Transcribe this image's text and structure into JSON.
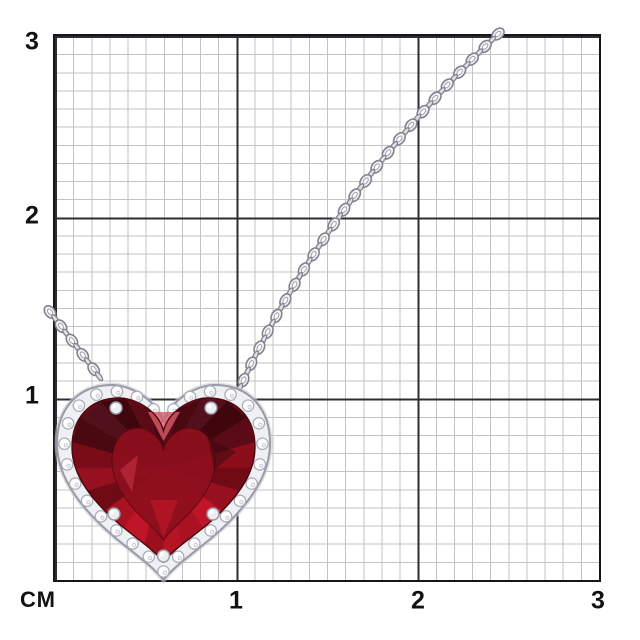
{
  "ruler": {
    "unit_label": "СМ",
    "y_ticks": [
      "3",
      "2",
      "1"
    ],
    "x_ticks": [
      "1",
      "2",
      "3"
    ]
  },
  "grid": {
    "unit": "cm",
    "major_step": "1",
    "minor_step": "0.1",
    "background_color": "#ffffff",
    "minor_line_color": "#c3c3c3",
    "major_line_color": "#2c2c31",
    "border_color": "#15151a"
  },
  "subject": {
    "kind": "heart-shaped red gemstone pendant with diamond halo on silver cable chain",
    "gem_base_color": "#7c0c18",
    "gem_dark_color": "#45070f",
    "gem_mid_color": "#8e0f1d",
    "gem_bright_color": "#b51425",
    "gem_highlight_color": "#d95b69",
    "metal_color": "#eff0f3",
    "metal_edge_color": "#989ba6",
    "chain_link_fill": "#f2f3f5",
    "chain_link_edge": "#82838d"
  }
}
